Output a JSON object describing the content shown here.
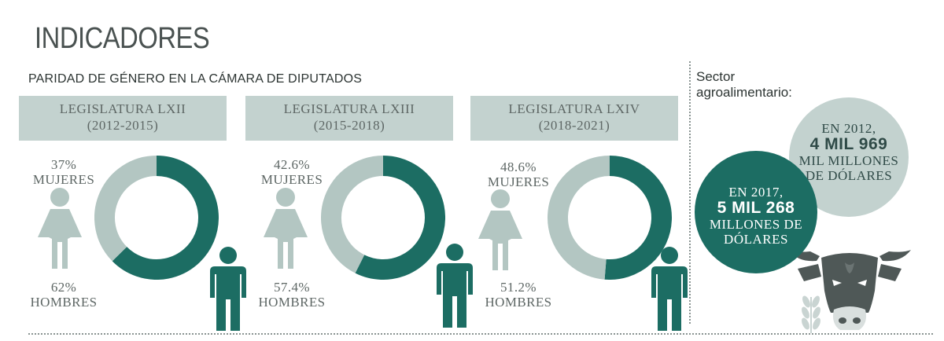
{
  "header": {
    "title": "INDICADORES"
  },
  "parity": {
    "subtitle": "PARIDAD DE GÉNERO EN LA CÁMARA DE DIPUTADOS"
  },
  "chart_data": [
    {
      "type": "pie",
      "title_line1": "LEGISLATURA LXII",
      "title_line2": "(2012-2015)",
      "categories": [
        "MUJERES",
        "HOMBRES"
      ],
      "values": [
        37,
        62
      ],
      "labels": [
        "37%",
        "62%"
      ],
      "colors": [
        "#b3c6c2",
        "#1c6d63"
      ]
    },
    {
      "type": "pie",
      "title_line1": "LEGISLATURA LXIII",
      "title_line2": "(2015-2018)",
      "categories": [
        "MUJERES",
        "HOMBRES"
      ],
      "values": [
        42.6,
        57.4
      ],
      "labels": [
        "42.6%",
        "57.4%"
      ],
      "colors": [
        "#b3c6c2",
        "#1c6d63"
      ]
    },
    {
      "type": "pie",
      "title_line1": "LEGISLATURA LXIV",
      "title_line2": "(2018-2021)",
      "categories": [
        "MUJERES",
        "HOMBRES"
      ],
      "values": [
        48.6,
        51.2
      ],
      "labels": [
        "48.6%",
        "51.2%"
      ],
      "colors": [
        "#b3c6c2",
        "#1c6d63"
      ]
    }
  ],
  "sector": {
    "label_line1": "Sector",
    "label_line2": "agroalimentario:",
    "y2012": {
      "line1": "EN 2012,",
      "big": "4 MIL 969",
      "line3": "MIL MILLONES",
      "line4": "DE DÓLARES"
    },
    "y2017": {
      "line1": "EN 2017,",
      "big": "5 MIL 268",
      "line3": "MILLONES DE",
      "line4": "DÓLARES"
    }
  },
  "icons": {
    "female": "woman-icon",
    "male": "man-icon",
    "cow": "cow-icon",
    "wheat": "wheat-icon"
  },
  "colors": {
    "accent": "#1c6d63",
    "light": "#b3c6c2",
    "panel": "#c3d2cf"
  }
}
